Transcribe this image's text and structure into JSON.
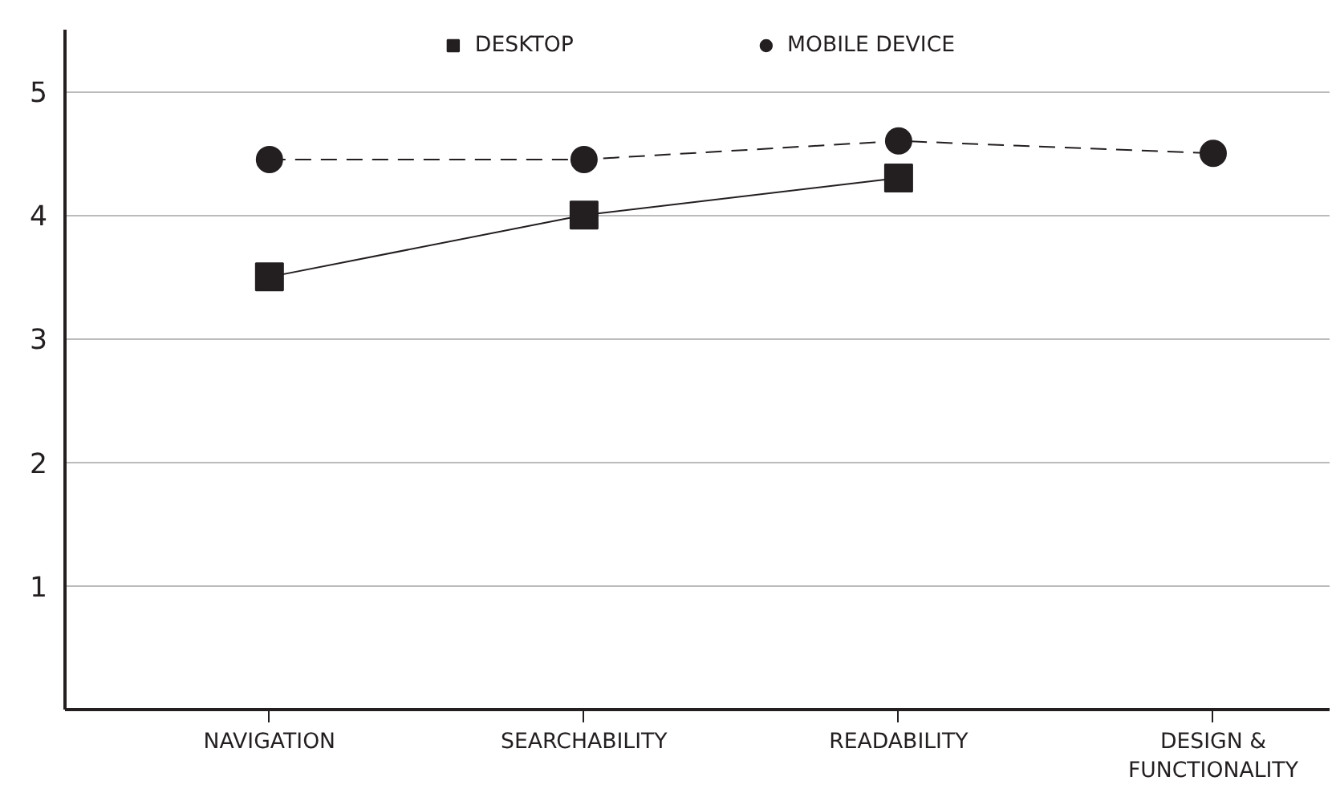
{
  "chart_data": {
    "type": "line",
    "categories": [
      "NAVIGATION",
      "SEARCHABILITY",
      "READABILITY",
      "DESIGN &\nFUNCTIONALITY"
    ],
    "series": [
      {
        "name": "DESKTOP",
        "color": "#231f20",
        "values": [
          3.5,
          4.0,
          4.3,
          null
        ],
        "marker": "square",
        "line_style": "solid"
      },
      {
        "name": "MOBILE DEVICE",
        "color": "#231f20",
        "values": [
          4.45,
          4.45,
          4.6,
          4.5
        ],
        "marker": "circle",
        "line_style": "dashed"
      }
    ],
    "ylim": [
      0,
      5.5
    ],
    "yticks": [
      1,
      2,
      3,
      4,
      5
    ],
    "grid": "y",
    "legend": "top"
  }
}
